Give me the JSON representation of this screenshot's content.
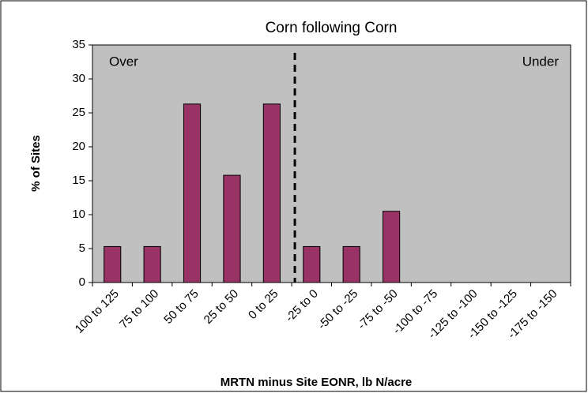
{
  "chart_data": {
    "type": "bar",
    "title": "Corn following Corn",
    "categories": [
      "100 to 125",
      "75 to 100",
      "50 to 75",
      "25 to 50",
      "0 to 25",
      "-25 to 0",
      "-50 to -25",
      "-75 to -50",
      "-100 to -75",
      "-125 to -100",
      "-150 to -125",
      "-175 to -150"
    ],
    "values": [
      5.3,
      5.3,
      26.3,
      15.8,
      26.3,
      5.3,
      5.3,
      10.5,
      0,
      0,
      0,
      0
    ],
    "color": "#993366",
    "ylim": [
      0,
      35
    ],
    "yticks": [
      0,
      5,
      10,
      15,
      20,
      25,
      30,
      35
    ],
    "ylabel": "% of Sites",
    "xlabel": "MRTN minus Site EONR, lb N/acre",
    "annotations": [
      "Over",
      "Under"
    ]
  }
}
